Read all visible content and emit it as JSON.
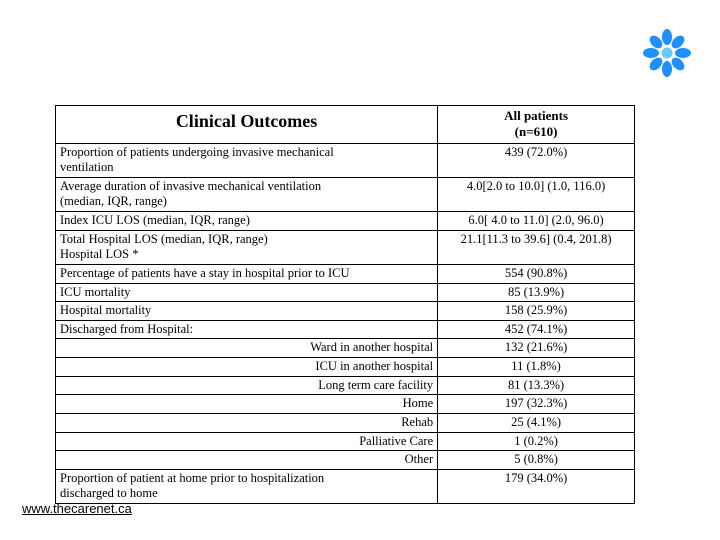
{
  "logo": {
    "petal_color": "#1e90ff",
    "center_color": "#66ccff"
  },
  "table": {
    "header_left": "Clinical Outcomes",
    "header_right_line1": "All patients",
    "header_right_line2": "(n=610)",
    "rows": [
      {
        "label_lines": [
          "Proportion of patients undergoing invasive mechanical",
          "ventilation"
        ],
        "value": "439 (72.0%)"
      },
      {
        "label_lines": [
          "Average duration of invasive mechanical ventilation",
          "(median, IQR, range)"
        ],
        "value": "4.0[2.0 to 10.0] (1.0, 116.0)"
      },
      {
        "label_lines": [
          "Index ICU LOS (median, IQR, range)"
        ],
        "value": "6.0[ 4.0 to 11.0] (2.0, 96.0)"
      },
      {
        "label_lines": [
          "Total Hospital LOS (median, IQR, range)",
          "Hospital LOS *"
        ],
        "value": "21.1[11.3 to 39.6] (0.4, 201.8)"
      },
      {
        "label_lines": [
          "Percentage of patients have a stay in hospital prior to ICU"
        ],
        "value": "554 (90.8%)"
      },
      {
        "label_lines": [
          "ICU mortality"
        ],
        "value": "85 (13.9%)"
      },
      {
        "label_lines": [
          "Hospital mortality"
        ],
        "value": "158 (25.9%)"
      },
      {
        "label_lines": [
          "Discharged from Hospital:"
        ],
        "value": "452 (74.1%)"
      },
      {
        "label_lines_right": [
          "Ward in another hospital"
        ],
        "value": "132 (21.6%)"
      },
      {
        "label_lines_right": [
          "ICU in another hospital"
        ],
        "value": "11 (1.8%)"
      },
      {
        "label_lines_right": [
          "Long term care facility"
        ],
        "value": "81 (13.3%)"
      },
      {
        "label_lines_right": [
          "Home"
        ],
        "value": "197 (32.3%)"
      },
      {
        "label_lines_right": [
          "Rehab"
        ],
        "value": "25 (4.1%)"
      },
      {
        "label_lines_right": [
          "Palliative Care"
        ],
        "value": "1 (0.2%)"
      },
      {
        "label_lines_right": [
          "Other"
        ],
        "value": "5 (0.8%)"
      },
      {
        "label_lines": [
          "Proportion of patient at home prior to hospitalization",
          "discharged to home"
        ],
        "value": "179 (34.0%)"
      }
    ]
  },
  "footer": {
    "link_text": "www.thecarenet.ca"
  }
}
